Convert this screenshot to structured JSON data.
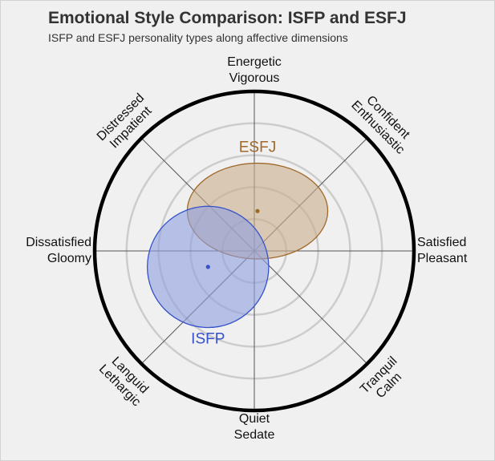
{
  "title": "Emotional Style Comparison: ISFP and ESFJ",
  "subtitle": "ISFP and ESFJ personality types along affective dimensions",
  "chart_data": {
    "type": "scatter",
    "subtype": "circumplex",
    "axes": [
      {
        "angle": 90,
        "label": [
          "Energetic",
          "Vigorous"
        ]
      },
      {
        "angle": 45,
        "label": [
          "Confident",
          "Enthusiastic"
        ]
      },
      {
        "angle": 0,
        "label": [
          "Satisfied",
          "Pleasant"
        ]
      },
      {
        "angle": -45,
        "label": [
          "Tranquil",
          "Calm"
        ]
      },
      {
        "angle": -90,
        "label": [
          "Quiet",
          "Sedate"
        ]
      },
      {
        "angle": -135,
        "label": [
          "Languid",
          "Lethargic"
        ]
      },
      {
        "angle": 180,
        "label": [
          "Dissatisfied",
          "Gloomy"
        ]
      },
      {
        "angle": 135,
        "label": [
          "Distressed",
          "Impatient"
        ]
      }
    ],
    "rings": [
      0.2,
      0.4,
      0.6,
      0.8
    ],
    "range": [
      -1,
      1
    ],
    "series": [
      {
        "name": "ESFJ",
        "x": 0.02,
        "y": 0.25,
        "rx": 0.44,
        "ry": 0.3,
        "color": "#a0692a",
        "fill": "#c9ae8b"
      },
      {
        "name": "ISFP",
        "x": -0.29,
        "y": -0.1,
        "rx": 0.38,
        "ry": 0.38,
        "color": "#3652c8",
        "fill": "#8f9fe0"
      }
    ]
  }
}
